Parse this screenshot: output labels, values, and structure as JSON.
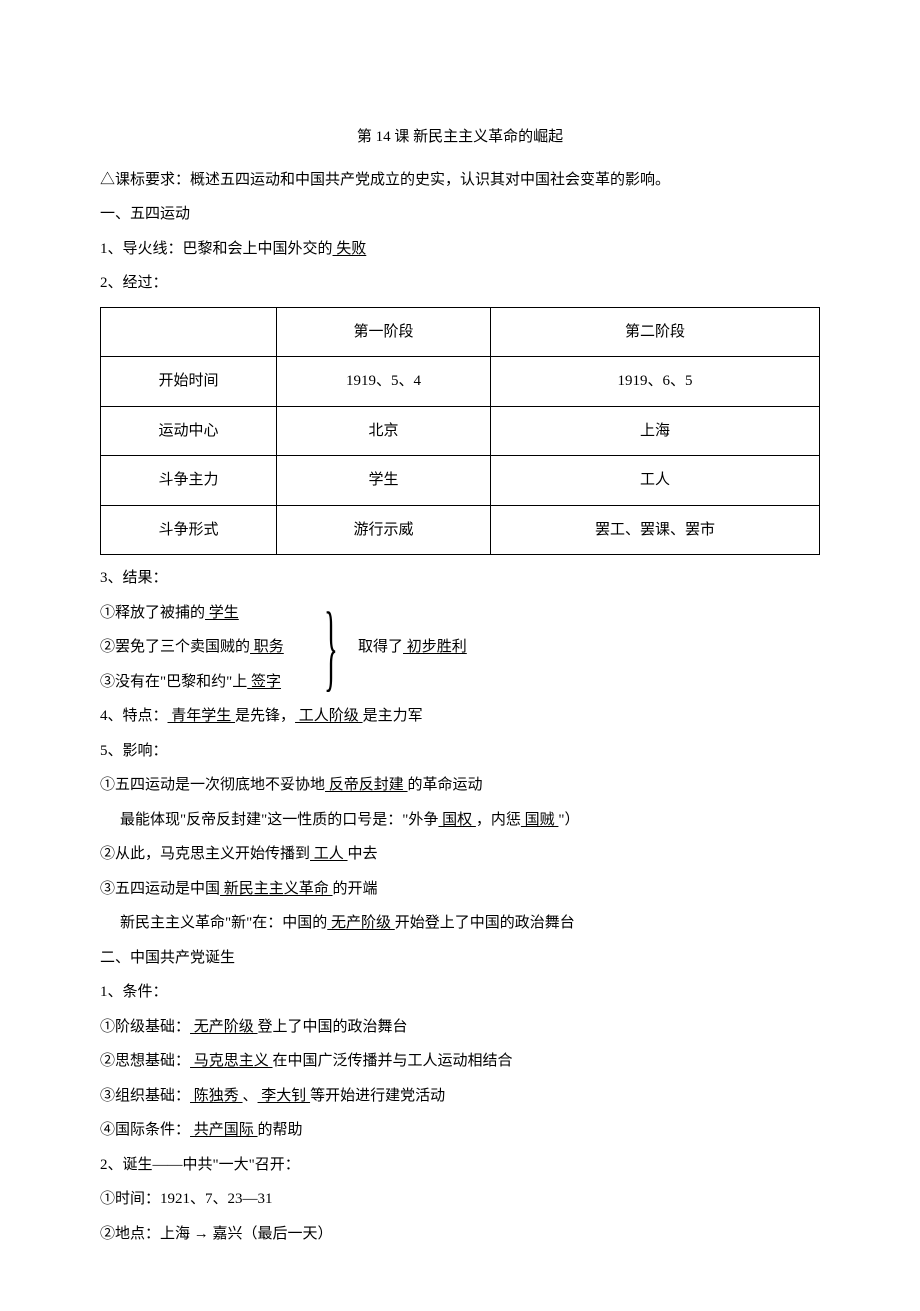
{
  "doc": {
    "title": "第 14 课   新民主主义革命的崛起",
    "intro": "△课标要求：概述五四运动和中国共产党成立的史实，认识其对中国社会变革的影响。",
    "h1": "一、五四运动",
    "s1_1a": "1、导火线：巴黎和会上中国外交的",
    "s1_1u": " 失败 ",
    "s1_2": "2、经过：",
    "table": {
      "headers": [
        "",
        "第一阶段",
        "第二阶段"
      ],
      "rows": [
        [
          "开始时间",
          "1919、5、4",
          "1919、6、5"
        ],
        [
          "运动中心",
          "北京",
          "上海"
        ],
        [
          "斗争主力",
          "学生",
          "工人"
        ],
        [
          "斗争形式",
          "游行示威",
          "罢工、罢课、罢市"
        ]
      ]
    },
    "s1_3": "3、结果：",
    "r1a": "①释放了被捕的",
    "r1u": " 学生 ",
    "r2a": "②罢免了三个卖国贼的",
    "r2u": " 职务 ",
    "r3a": "③没有在\"巴黎和约\"上",
    "r3u": " 签字 ",
    "rbracket_a": "取得了",
    "rbracket_u": " 初步胜利 ",
    "s1_4a": "4、特点：",
    "s1_4u1": " 青年学生 ",
    "s1_4b": "是先锋，",
    "s1_4u2": " 工人阶级 ",
    "s1_4c": "是主力军",
    "s1_5": "5、影响：",
    "i1a": "①五四运动是一次彻底地不妥协地",
    "i1u": " 反帝反封建 ",
    "i1b": "的革命运动",
    "i1suba": "最能体现\"反帝反封建\"这一性质的口号是：\"外争",
    "i1subu1": " 国权 ",
    "i1subb": "，内惩",
    "i1subu2": " 国贼 ",
    "i1subc": "\"）",
    "i2a": "②从此，马克思主义开始传播到",
    "i2u": " 工人 ",
    "i2b": "中去",
    "i3a": "③五四运动是中国",
    "i3u": " 新民主主义革命 ",
    "i3b": "的开端",
    "i3suba": "新民主主义革命\"新\"在：中国的",
    "i3subu": " 无产阶级 ",
    "i3subb": "开始登上了中国的政治舞台",
    "h2": "二、中国共产党诞生",
    "s2_1": "1、条件：",
    "c1a": "①阶级基础：",
    "c1u": " 无产阶级 ",
    "c1b": "登上了中国的政治舞台",
    "c2a": "②思想基础：",
    "c2u": " 马克思主义 ",
    "c2b": "在中国广泛传播并与工人运动相结合",
    "c3a": "③组织基础：",
    "c3u1": " 陈独秀 ",
    "c3b": "、",
    "c3u2": " 李大钊 ",
    "c3c": "等开始进行建党活动",
    "c4a": "④国际条件：",
    "c4u": " 共产国际 ",
    "c4b": "的帮助",
    "s2_2": "2、诞生——中共\"一大\"召开：",
    "b1": "①时间：1921、7、23—31",
    "b2": "②地点：上海 → 嘉兴（最后一天）"
  }
}
